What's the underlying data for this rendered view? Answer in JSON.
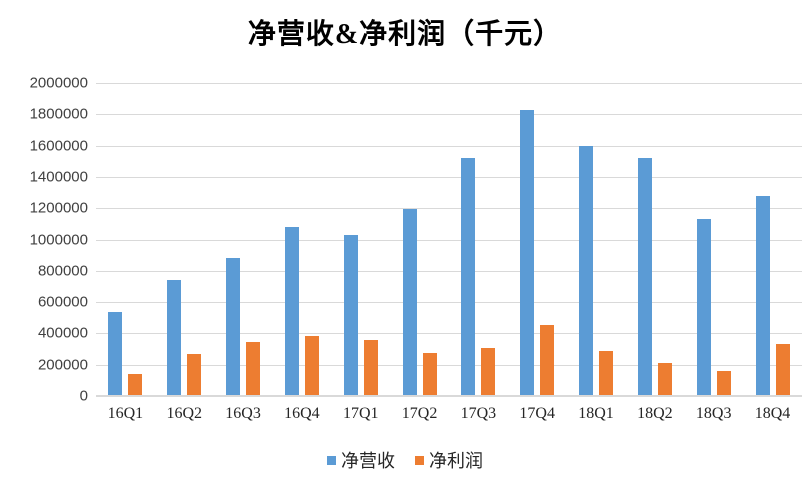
{
  "title": "净营收&净利润（千元）",
  "colors": {
    "revenue": "#5B9BD5",
    "profit": "#ED7D31",
    "gridline": "#D9D9D9",
    "axis_line": "#D9D9D9",
    "axis_text": "#404040",
    "tick_text": "#262626",
    "background": "#FFFFFF",
    "title_text": "#000000"
  },
  "legend": [
    {
      "label": "净营收",
      "color": "#5B9BD5"
    },
    {
      "label": "净利润",
      "color": "#ED7D31"
    }
  ],
  "chart_data": {
    "type": "bar",
    "title": "净营收&净利润（千元）",
    "categories": [
      "16Q1",
      "16Q2",
      "16Q3",
      "16Q4",
      "17Q1",
      "17Q2",
      "17Q3",
      "17Q4",
      "18Q1",
      "18Q2",
      "18Q3",
      "18Q4"
    ],
    "series": [
      {
        "name": "净营收",
        "color": "#5B9BD5",
        "values": [
          532200,
          734100,
          875500,
          1070800,
          1022200,
          1187000,
          1514000,
          1822200,
          1593400,
          1512400,
          1123900,
          1271100
        ]
      },
      {
        "name": "净利润",
        "color": "#ED7D31",
        "values": [
          132200,
          261600,
          340000,
          379800,
          350700,
          269100,
          303000,
          449900,
          278900,
          207600,
          152000,
          327900
        ]
      }
    ],
    "xlabel": "",
    "ylabel": "",
    "ylim": [
      0,
      2000000
    ],
    "ytick_step": 200000,
    "yticks": [
      0,
      200000,
      400000,
      600000,
      800000,
      1000000,
      1200000,
      1400000,
      1600000,
      1800000,
      2000000
    ],
    "ytick_labels": [
      "0",
      "200000",
      "400000",
      "600000",
      "800000",
      "1000000",
      "1200000",
      "1400000",
      "1600000",
      "1800000",
      "2000000"
    ],
    "grid": true,
    "legend_position": "bottom"
  }
}
